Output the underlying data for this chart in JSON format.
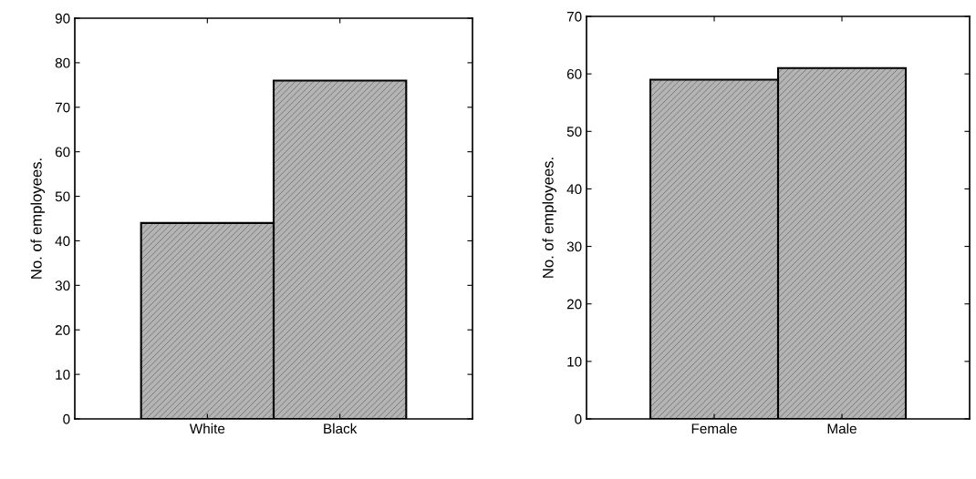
{
  "chart_data": [
    {
      "type": "bar",
      "ylabel": "No. of employees.",
      "categories": [
        "White",
        "Black"
      ],
      "values": [
        44,
        76
      ],
      "color": "#b4b4b4",
      "ylim": [
        0,
        90
      ],
      "yticks": [
        0,
        10,
        20,
        30,
        40,
        50,
        60,
        70,
        80,
        90
      ],
      "grid": false
    },
    {
      "type": "bar",
      "ylabel": "No. of employees.",
      "categories": [
        "Female",
        "Male"
      ],
      "values": [
        59,
        61
      ],
      "color": "#b4b4b4",
      "ylim": [
        0,
        70
      ],
      "yticks": [
        0,
        10,
        20,
        30,
        40,
        50,
        60,
        70
      ],
      "grid": false
    }
  ]
}
